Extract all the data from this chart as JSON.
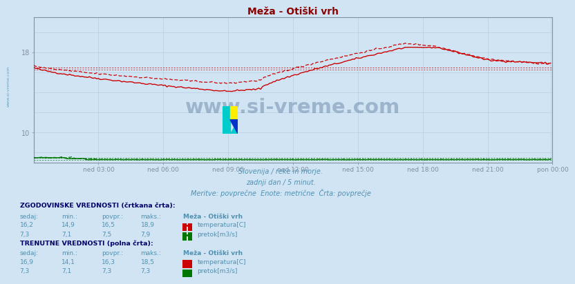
{
  "title": "Meža - Otiški vrh",
  "title_color": "#8b0000",
  "bg_color": "#d0e4f4",
  "plot_bg_color": "#d0e4f4",
  "grid_color": "#b8cfe0",
  "text_color": "#5090b0",
  "xlabel_ticks": [
    "ned 03:00",
    "ned 06:00",
    "ned 09:00",
    "ned 12:00",
    "ned 15:00",
    "ned 18:00",
    "ned 21:00",
    "pon 00:00"
  ],
  "ylim": [
    7.0,
    21.5
  ],
  "xlim": [
    0,
    287
  ],
  "temp_avg_hist": 16.5,
  "temp_avg_curr": 16.3,
  "flow_avg_hist": 7.5,
  "flow_avg_curr": 7.3,
  "subtitle1": "Slovenija / reke in morje.",
  "subtitle2": "zadnji dan / 5 minut.",
  "subtitle3": "Meritve: povprečne  Enote: metrične  Črta: povprečje",
  "watermark": "www.si-vreme.com",
  "watermark_color": "#1a4a7a",
  "sidebar_text": "www.si-vreme.com",
  "legend_title_hist": "ZGODOVINSKE VREDNOSTI (črtkana črta):",
  "legend_title_curr": "TRENUTNE VREDNOSTI (polna črta):",
  "legend_cols": [
    "sedaj:",
    "min.:",
    "povpr.:",
    "maks.:"
  ],
  "legend_station": "Meža - Otiški vrh",
  "hist_temp_row": [
    "16,2",
    "14,9",
    "16,5",
    "18,9"
  ],
  "hist_flow_row": [
    "7,3",
    "7,1",
    "7,5",
    "7,9"
  ],
  "curr_temp_row": [
    "16,9",
    "14,1",
    "16,3",
    "18,5"
  ],
  "curr_flow_row": [
    "7,3",
    "7,1",
    "7,3",
    "7,3"
  ],
  "temp_color": "#cc0000",
  "flow_color": "#007700",
  "border_color": "#8090a0",
  "n_points": 288
}
